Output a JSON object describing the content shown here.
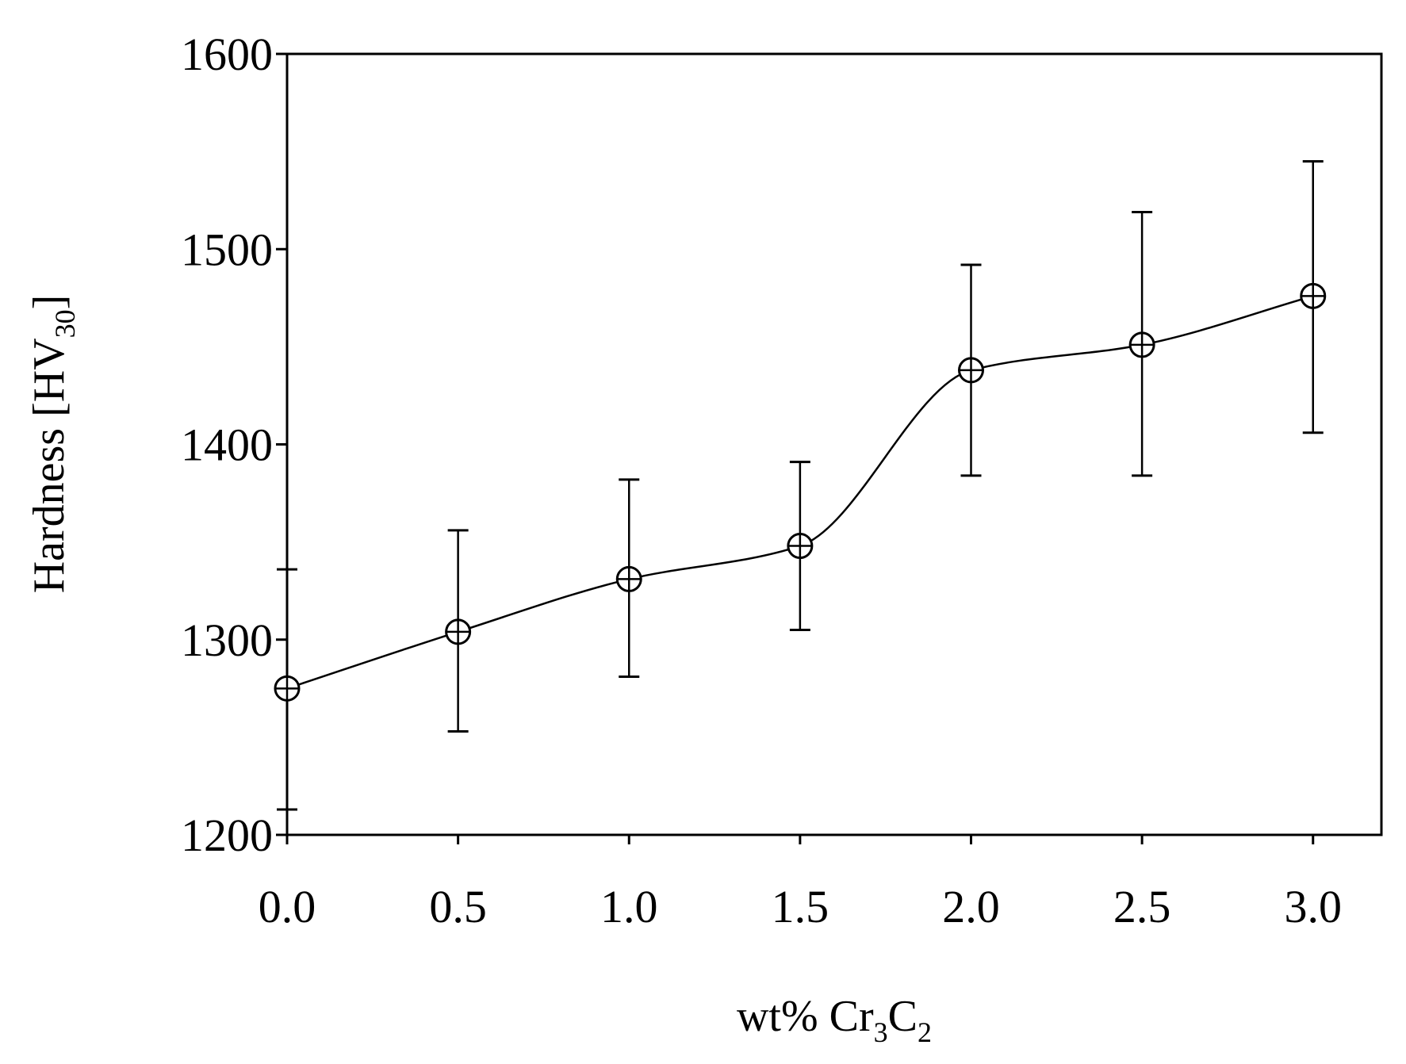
{
  "chart_data": {
    "type": "line",
    "title": "",
    "xlabel": {
      "main": "wt%  Cr",
      "sub1": "3",
      "mid": "C",
      "sub2": "2"
    },
    "ylabel": {
      "main": "Hardness [HV",
      "sub": "30",
      "end": "]"
    },
    "xlim": [
      0,
      3.2
    ],
    "ylim": [
      1200,
      1600
    ],
    "x_ticks": [
      {
        "value": 0.0,
        "label": "0.0"
      },
      {
        "value": 0.5,
        "label": "0.5"
      },
      {
        "value": 1.0,
        "label": "1.0"
      },
      {
        "value": 1.5,
        "label": "1.5"
      },
      {
        "value": 2.0,
        "label": "2.0"
      },
      {
        "value": 2.5,
        "label": "2.5"
      },
      {
        "value": 3.0,
        "label": "3.0"
      }
    ],
    "y_ticks": [
      {
        "value": 1200,
        "label": "1200"
      },
      {
        "value": 1300,
        "label": "1300"
      },
      {
        "value": 1400,
        "label": "1400"
      },
      {
        "value": 1500,
        "label": "1500"
      },
      {
        "value": 1600,
        "label": "1600"
      }
    ],
    "grid": false,
    "legend": "none",
    "series": [
      {
        "name": "Hardness",
        "marker": "circle-cross",
        "smooth": true,
        "color": "#000000",
        "points": [
          {
            "x": 0.0,
            "y": 1275,
            "err_low": 1213,
            "err_high": 1336
          },
          {
            "x": 0.5,
            "y": 1304,
            "err_low": 1253,
            "err_high": 1356
          },
          {
            "x": 1.0,
            "y": 1331,
            "err_low": 1281,
            "err_high": 1382
          },
          {
            "x": 1.5,
            "y": 1348,
            "err_low": 1305,
            "err_high": 1391
          },
          {
            "x": 2.0,
            "y": 1438,
            "err_low": 1384,
            "err_high": 1492
          },
          {
            "x": 2.5,
            "y": 1451,
            "err_low": 1384,
            "err_high": 1519
          },
          {
            "x": 3.0,
            "y": 1476,
            "err_low": 1406,
            "err_high": 1545
          }
        ]
      }
    ]
  }
}
